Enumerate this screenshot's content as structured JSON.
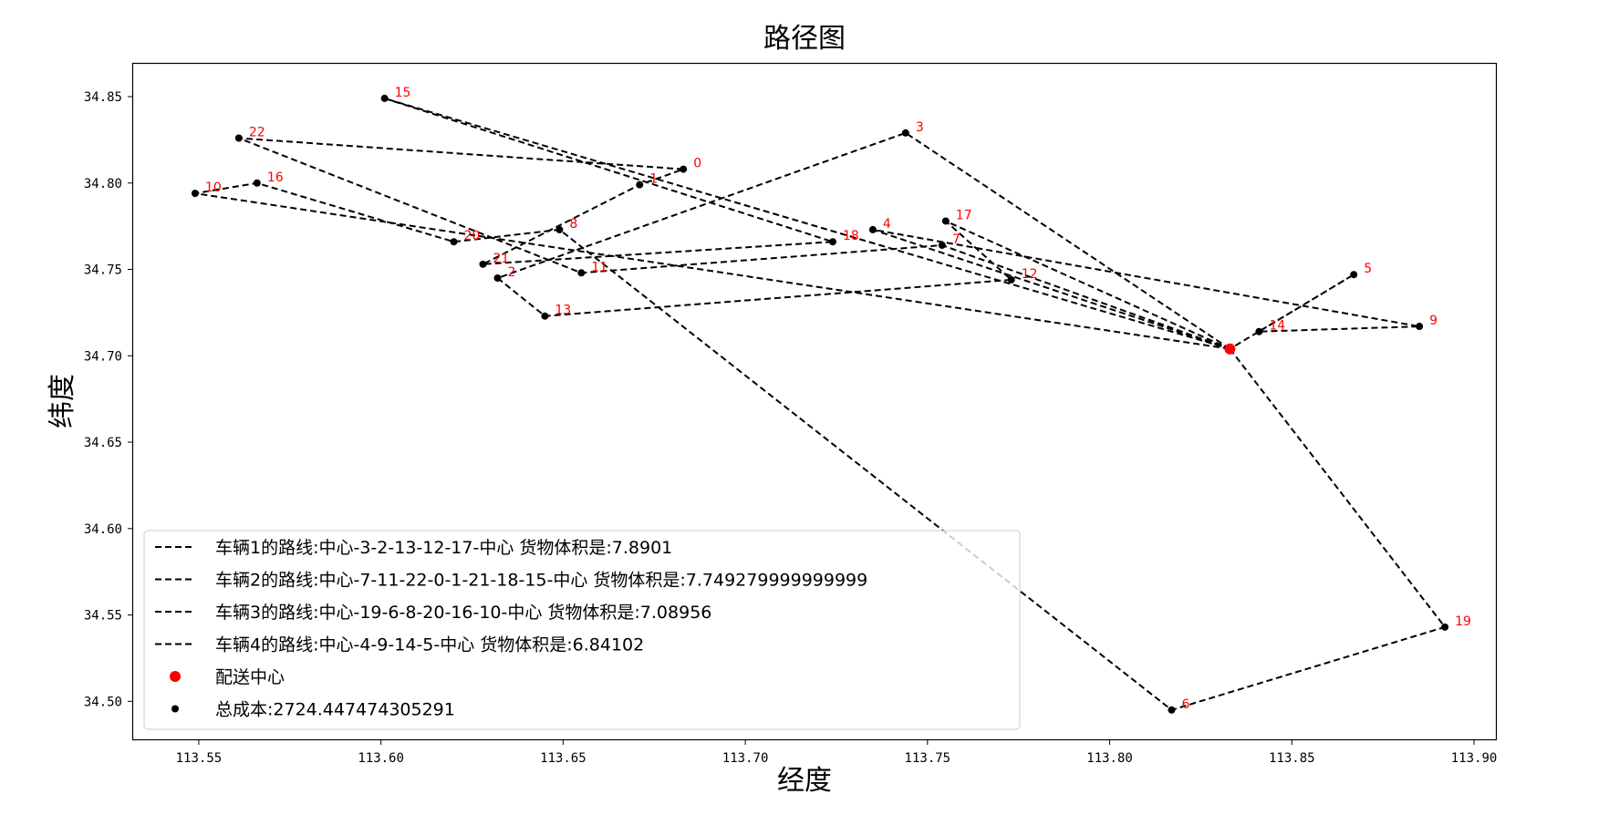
{
  "chart_data": {
    "type": "scatter",
    "title": "路径图",
    "xlabel": "经度",
    "ylabel": "纬度",
    "xlim": [
      113.532,
      113.906
    ],
    "ylim": [
      34.478,
      34.869
    ],
    "xticks": [
      "113.55",
      "113.60",
      "113.65",
      "113.70",
      "113.75",
      "113.80",
      "113.85",
      "113.90"
    ],
    "yticks": [
      "34.50",
      "34.55",
      "34.60",
      "34.65",
      "34.70",
      "34.75",
      "34.80",
      "34.85"
    ],
    "grid": false,
    "legend_position": "lower-left",
    "center": {
      "name": "配送中心",
      "x": 113.833,
      "y": 34.704,
      "color": "#ff0000"
    },
    "points": [
      {
        "id": "0",
        "x": 113.683,
        "y": 34.808
      },
      {
        "id": "1",
        "x": 113.671,
        "y": 34.799
      },
      {
        "id": "2",
        "x": 113.632,
        "y": 34.745
      },
      {
        "id": "3",
        "x": 113.744,
        "y": 34.829
      },
      {
        "id": "4",
        "x": 113.735,
        "y": 34.773
      },
      {
        "id": "5",
        "x": 113.867,
        "y": 34.747
      },
      {
        "id": "6",
        "x": 113.817,
        "y": 34.495
      },
      {
        "id": "7",
        "x": 113.754,
        "y": 34.764
      },
      {
        "id": "8",
        "x": 113.649,
        "y": 34.773
      },
      {
        "id": "9",
        "x": 113.885,
        "y": 34.717
      },
      {
        "id": "10",
        "x": 113.549,
        "y": 34.794
      },
      {
        "id": "11",
        "x": 113.655,
        "y": 34.748
      },
      {
        "id": "12",
        "x": 113.773,
        "y": 34.744
      },
      {
        "id": "13",
        "x": 113.645,
        "y": 34.723
      },
      {
        "id": "14",
        "x": 113.841,
        "y": 34.714
      },
      {
        "id": "15",
        "x": 113.601,
        "y": 34.849
      },
      {
        "id": "16",
        "x": 113.566,
        "y": 34.8
      },
      {
        "id": "17",
        "x": 113.755,
        "y": 34.778
      },
      {
        "id": "18",
        "x": 113.724,
        "y": 34.766
      },
      {
        "id": "19",
        "x": 113.892,
        "y": 34.543
      },
      {
        "id": "20",
        "x": 113.62,
        "y": 34.766
      },
      {
        "id": "21",
        "x": 113.628,
        "y": 34.753
      },
      {
        "id": "22",
        "x": 113.561,
        "y": 34.826
      }
    ],
    "series": [
      {
        "name": "车辆1的路线:中心-3-2-13-12-17-中心 货物体积是:7.8901",
        "route": [
          "C",
          "3",
          "2",
          "13",
          "12",
          "17",
          "C"
        ]
      },
      {
        "name": "车辆2的路线:中心-7-11-22-0-1-21-18-15-中心 货物体积是:7.749279999999999",
        "route": [
          "C",
          "7",
          "11",
          "22",
          "0",
          "1",
          "21",
          "18",
          "15",
          "C"
        ]
      },
      {
        "name": "车辆3的路线:中心-19-6-8-20-16-10-中心 货物体积是:7.08956",
        "route": [
          "C",
          "19",
          "6",
          "8",
          "20",
          "16",
          "10",
          "C"
        ]
      },
      {
        "name": "车辆4的路线:中心-4-9-14-5-中心 货物体积是:6.84102",
        "route": [
          "C",
          "4",
          "9",
          "14",
          "5",
          "C"
        ]
      }
    ],
    "cost_label": "总成本:2724.447474305291"
  }
}
